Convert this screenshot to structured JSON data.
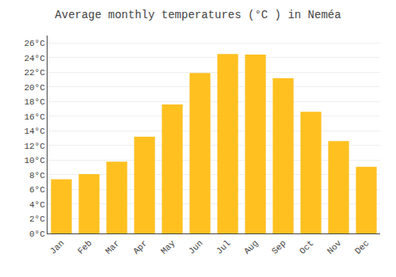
{
  "chart_data": {
    "type": "bar",
    "title": "Average monthly temperatures (°C ) in Neméa",
    "categories": [
      "Jan",
      "Feb",
      "Mar",
      "Apr",
      "May",
      "Jun",
      "Jul",
      "Aug",
      "Sep",
      "Oct",
      "Nov",
      "Dec"
    ],
    "values": [
      7.4,
      8.1,
      9.8,
      13.2,
      17.6,
      21.9,
      24.5,
      24.4,
      21.2,
      16.6,
      12.6,
      9.1
    ],
    "color": "#FFC020",
    "ylim": [
      0,
      27
    ],
    "yticks": [
      {
        "value": 0,
        "label": "0°C"
      },
      {
        "value": 2,
        "label": "2°C"
      },
      {
        "value": 4,
        "label": "4°C"
      },
      {
        "value": 6,
        "label": "6°C"
      },
      {
        "value": 8,
        "label": "8°C"
      },
      {
        "value": 10,
        "label": "10°C"
      },
      {
        "value": 12,
        "label": "12°C"
      },
      {
        "value": 14,
        "label": "14°C"
      },
      {
        "value": 16,
        "label": "16°C"
      },
      {
        "value": 18,
        "label": "18°C"
      },
      {
        "value": 20,
        "label": "20°C"
      },
      {
        "value": 22,
        "label": "22°C"
      },
      {
        "value": 24,
        "label": "24°C"
      },
      {
        "value": 26,
        "label": "26°C"
      }
    ],
    "grid": true
  }
}
